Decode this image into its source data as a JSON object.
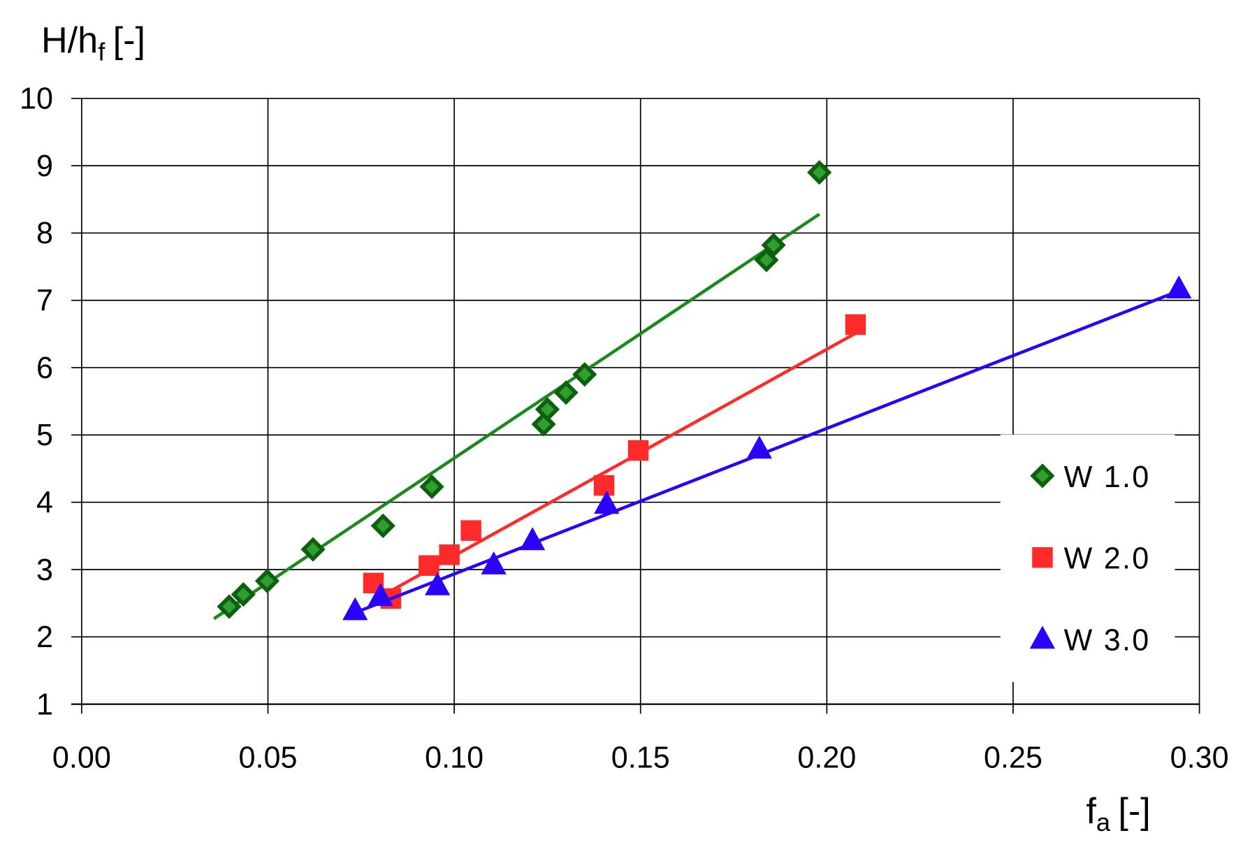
{
  "chart_data": {
    "type": "scatter",
    "y_label": "H/h",
    "y_label_sub": "f",
    "y_label_unit": "[-]",
    "x_label": "f",
    "x_label_sub": "a",
    "x_label_unit": "[-]",
    "xlim": [
      0,
      0.3
    ],
    "xticks": [
      {
        "value": 0,
        "label": "0.00"
      },
      {
        "value": 0.05,
        "label": "0.05"
      },
      {
        "value": 0.1,
        "label": "0.10"
      },
      {
        "value": 0.15,
        "label": "0.15"
      },
      {
        "value": 0.2,
        "label": "0.20"
      },
      {
        "value": 0.25,
        "label": "0.25"
      },
      {
        "value": 0.3,
        "label": "0.30"
      }
    ],
    "ylim": [
      1,
      10
    ],
    "yticks": [
      1,
      2,
      3,
      4,
      5,
      6,
      7,
      8,
      9,
      10
    ],
    "grid": true,
    "legend": "right",
    "series": [
      {
        "name": "W 1.0",
        "marker": "diamond",
        "color": "#1b8a1b",
        "x": [
          0.0396,
          0.0434,
          0.0498,
          0.0621,
          0.0809,
          0.094,
          0.124,
          0.125,
          0.13,
          0.135,
          0.1838,
          0.1857,
          0.198
        ],
        "values": [
          2.45,
          2.63,
          2.83,
          3.3,
          3.65,
          4.23,
          5.16,
          5.38,
          5.63,
          5.9,
          7.6,
          7.82,
          8.9
        ],
        "fit": {
          "x": [
            0.0355,
            0.198
          ],
          "values": [
            2.27,
            8.28
          ]
        }
      },
      {
        "name": "W 2.0",
        "marker": "square",
        "color": "#ff2a2a",
        "x": [
          0.0783,
          0.083,
          0.0932,
          0.0987,
          0.1045,
          0.1402,
          0.1494,
          0.2077
        ],
        "values": [
          2.8,
          2.57,
          3.06,
          3.22,
          3.58,
          4.25,
          4.77,
          6.64
        ],
        "fit": {
          "x": [
            0.0783,
            0.2077
          ],
          "values": [
            2.54,
            6.51
          ]
        }
      },
      {
        "name": "W 3.0",
        "marker": "triangle",
        "color": "#2a00ff",
        "x": [
          0.0734,
          0.0802,
          0.0955,
          0.1106,
          0.121,
          0.1409,
          0.1819,
          0.2945
        ],
        "values": [
          2.39,
          2.6,
          2.76,
          3.07,
          3.43,
          3.97,
          4.79,
          7.17
        ],
        "fit": {
          "x": [
            0.0734,
            0.2945
          ],
          "values": [
            2.36,
            7.14
          ]
        }
      }
    ]
  }
}
